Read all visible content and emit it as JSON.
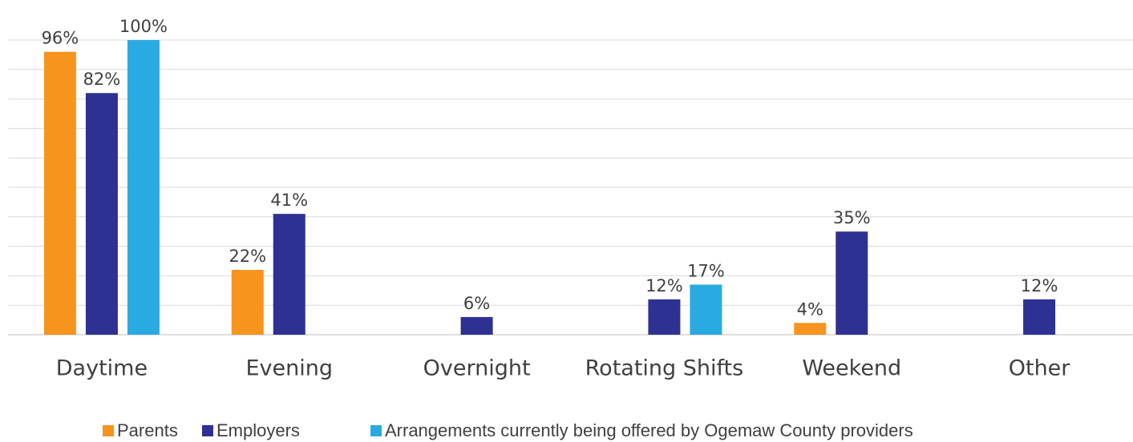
{
  "chart_data": {
    "type": "bar",
    "categories": [
      "Daytime",
      "Evening",
      "Overnight",
      "Rotating Shifts",
      "Weekend",
      "Other"
    ],
    "series": [
      {
        "name": "Parents",
        "color": "#f7941d",
        "values": [
          96,
          22,
          null,
          null,
          4,
          null
        ],
        "value_labels": [
          "96%",
          "22%",
          null,
          null,
          "4%",
          null
        ]
      },
      {
        "name": "Employers",
        "color": "#2e3192",
        "values": [
          82,
          41,
          6,
          12,
          35,
          12
        ],
        "value_labels": [
          "82%",
          "41%",
          "6%",
          "12%",
          "35%",
          "12%"
        ]
      },
      {
        "name": "Arrangements currently being offered by Ogemaw County providers",
        "color": "#29abe2",
        "values": [
          100,
          null,
          null,
          17,
          null,
          null
        ],
        "value_labels": [
          "100%",
          null,
          null,
          "17%",
          null,
          null
        ]
      }
    ],
    "ylim": [
      0,
      100
    ],
    "yticks": [
      0,
      10,
      20,
      30,
      40,
      50,
      60,
      70,
      80,
      90,
      100
    ],
    "grid": true
  }
}
